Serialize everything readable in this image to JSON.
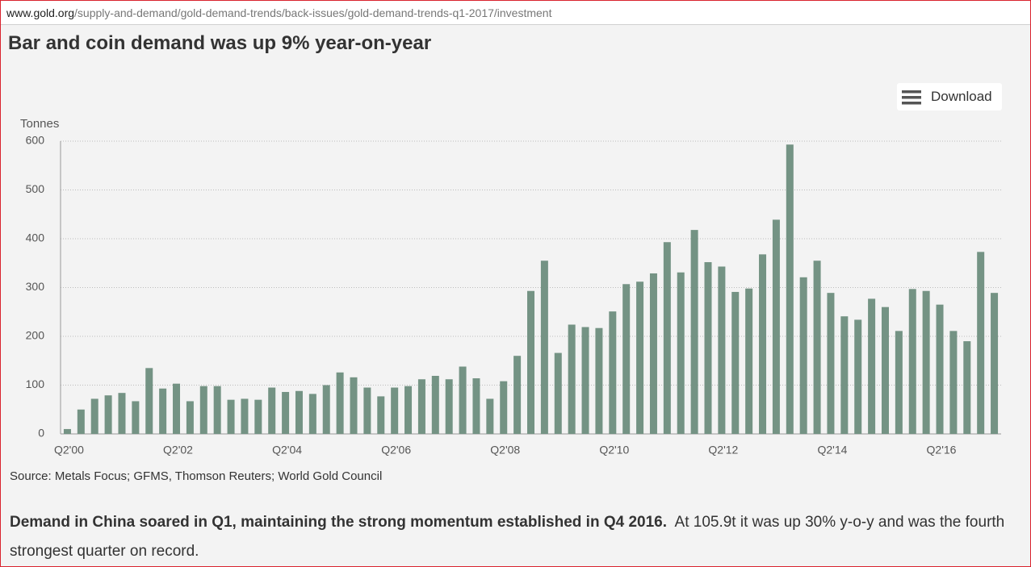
{
  "url": {
    "host": "www.gold.org",
    "path": "/supply-and-demand/gold-demand-trends/back-issues/gold-demand-trends-q1-2017/investment"
  },
  "download": "Download",
  "chart_data": {
    "type": "bar",
    "title": "Bar and coin demand was up 9% year-on-year",
    "y_label": "Tonnes",
    "source": "Source: Metals Focus; GFMS, Thomson Reuters; World Gold Council",
    "color": "#749384",
    "grid": true,
    "ylim": [
      0,
      600
    ],
    "yticks": [
      0,
      100,
      200,
      300,
      400,
      500,
      600
    ],
    "categories": [
      "Q2'00",
      null,
      null,
      null,
      null,
      null,
      null,
      null,
      "Q2'02",
      null,
      null,
      null,
      null,
      null,
      null,
      null,
      "Q2'04",
      null,
      null,
      null,
      null,
      null,
      null,
      null,
      "Q2'06",
      null,
      null,
      null,
      null,
      null,
      null,
      null,
      "Q2'08",
      null,
      null,
      null,
      null,
      null,
      null,
      null,
      "Q2'10",
      null,
      null,
      null,
      null,
      null,
      null,
      null,
      "Q2'12",
      null,
      null,
      null,
      null,
      null,
      null,
      null,
      "Q2'14",
      null,
      null,
      null,
      null,
      null,
      null,
      null,
      "Q2'16",
      null,
      null,
      null,
      null
    ],
    "values": [
      10,
      50,
      72,
      79,
      84,
      67,
      135,
      93,
      103,
      67,
      98,
      98,
      70,
      72,
      70,
      95,
      86,
      88,
      82,
      100,
      126,
      116,
      95,
      77,
      95,
      98,
      112,
      119,
      112,
      138,
      114,
      72,
      108,
      160,
      293,
      355,
      166,
      224,
      219,
      217,
      251,
      307,
      312,
      329,
      393,
      331,
      418,
      352,
      343,
      291,
      298,
      368,
      439,
      593,
      321,
      355,
      289,
      241,
      234,
      277,
      260,
      211,
      297,
      293,
      265,
      211,
      190,
      373,
      289
    ]
  },
  "paragraph": {
    "bold": "Demand in China soared in Q1, maintaining the strong momentum established in Q4 2016.",
    "text": "At 105.9t it was up 30% y-o-y and was the fourth strongest quarter on record."
  }
}
